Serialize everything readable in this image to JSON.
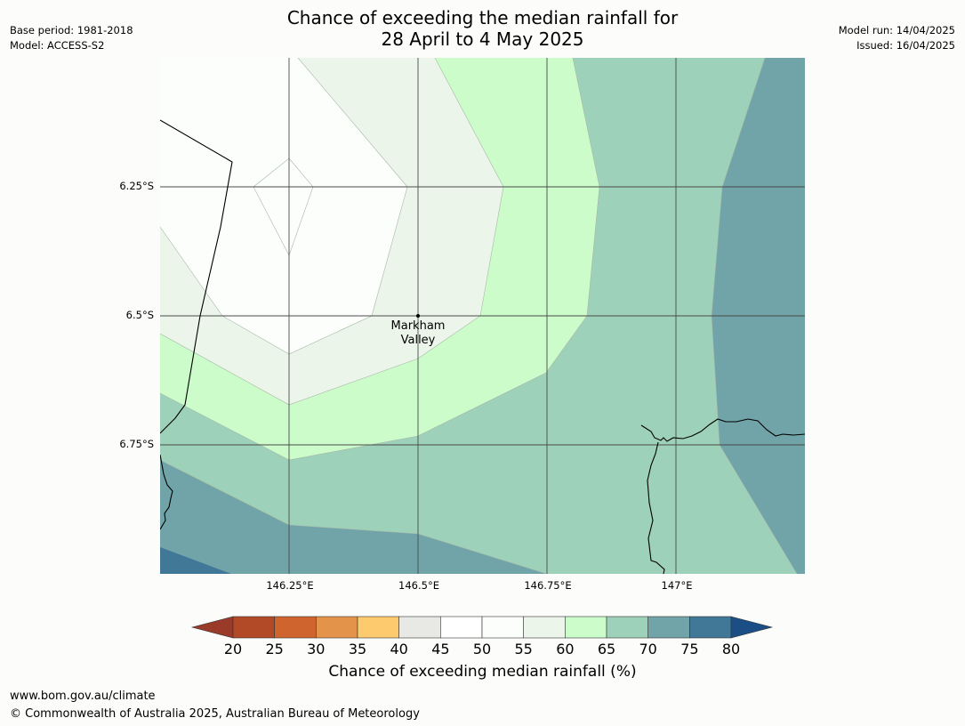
{
  "title_line1": "Chance of exceeding the median rainfall for",
  "title_line2": "28 April to 4 May 2025",
  "meta_left": {
    "base_period": "Base period: 1981-2018",
    "model": "Model: ACCESS-S2"
  },
  "meta_right": {
    "model_run": "Model run: 14/04/2025",
    "issued": "Issued: 16/04/2025"
  },
  "map": {
    "lat_labels": [
      "6.25°S",
      "6.5°S",
      "6.75°S"
    ],
    "lon_labels": [
      "146.25°E",
      "146.5°E",
      "146.75°E",
      "147°E"
    ],
    "place": {
      "name_line1": "Markham",
      "name_line2": "Valley"
    }
  },
  "colorbar": {
    "title": "Chance of exceeding median rainfall (%)",
    "tick_labels": [
      "20",
      "25",
      "30",
      "35",
      "40",
      "45",
      "50",
      "55",
      "60",
      "65",
      "70",
      "75",
      "80"
    ],
    "below_color": "#9a3a28",
    "above_color": "#1b4e85",
    "band_colors": [
      "#b34a27",
      "#d0642f",
      "#e3944a",
      "#fdcb6e",
      "#e8e8e5",
      "#ffffff",
      "#fcfefc",
      "#ebf5ea",
      "#cbfcca",
      "#9ed1b9",
      "#70a4a8",
      "#417898"
    ]
  },
  "footer": {
    "url": "www.bom.gov.au/climate",
    "copyright": "© Commonwealth of Australia 2025, Australian Bureau of Meteorology"
  }
}
